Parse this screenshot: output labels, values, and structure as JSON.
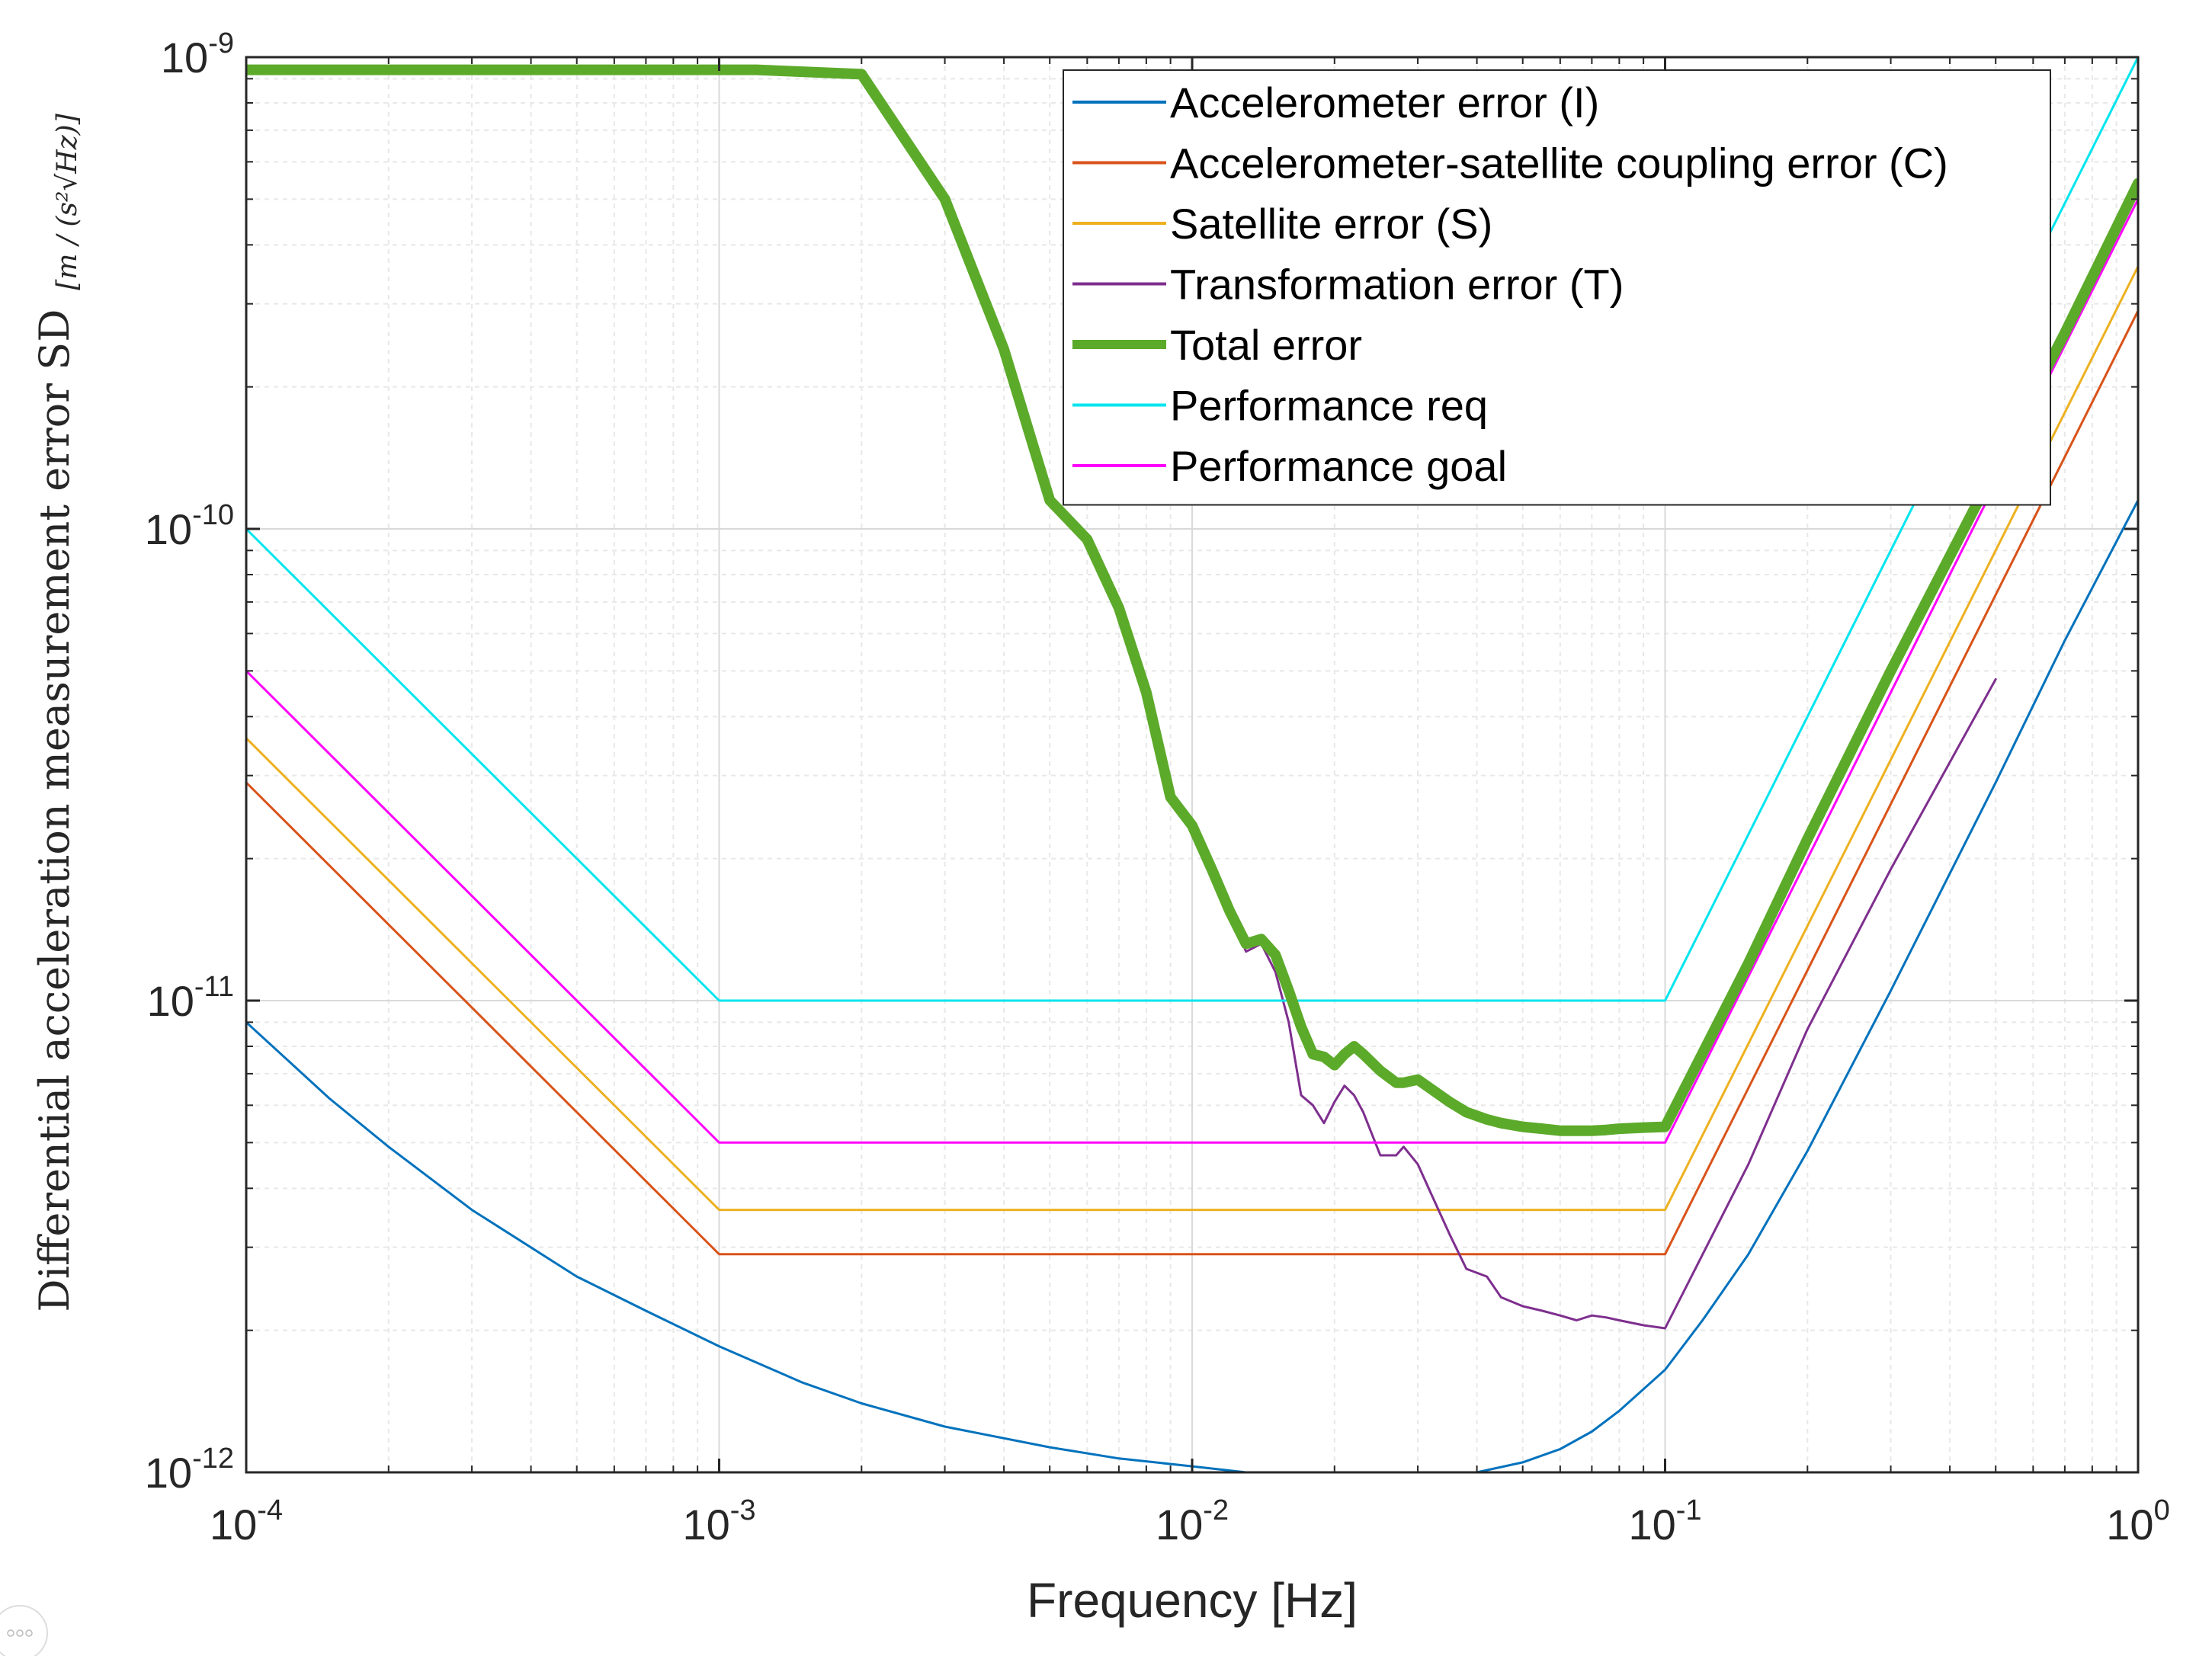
{
  "chart_data": {
    "type": "line",
    "title": "",
    "xlabel": "Frequency [Hz]",
    "ylabel": "Differential acceleration measurement error SD",
    "ylabel_unit": "[m / (s²√Hz)]",
    "x_scale": "log",
    "y_scale": "log",
    "xlim": [
      0.0001,
      1
    ],
    "ylim": [
      1e-12,
      1e-09
    ],
    "grid": true,
    "legend_position": "top-right",
    "x_ticks": [
      {
        "value": 0.0001,
        "base": "10",
        "exp": "-4"
      },
      {
        "value": 0.001,
        "base": "10",
        "exp": "-3"
      },
      {
        "value": 0.01,
        "base": "10",
        "exp": "-2"
      },
      {
        "value": 0.1,
        "base": "10",
        "exp": "-1"
      },
      {
        "value": 1,
        "base": "10",
        "exp": "0"
      }
    ],
    "y_ticks": [
      {
        "value": 1e-12,
        "base": "10",
        "exp": "-12"
      },
      {
        "value": 1e-11,
        "base": "10",
        "exp": "-11"
      },
      {
        "value": 1e-10,
        "base": "10",
        "exp": "-10"
      },
      {
        "value": 1e-09,
        "base": "10",
        "exp": "-9"
      }
    ],
    "series": [
      {
        "name": "Accelerometer error (I)",
        "color": "#0072BD",
        "width": 3,
        "x": [
          0.0001,
          0.00015,
          0.0002,
          0.0003,
          0.0005,
          0.0007,
          0.001,
          0.0015,
          0.002,
          0.003,
          0.005,
          0.007,
          0.01,
          0.013,
          0.04,
          0.05,
          0.06,
          0.07,
          0.08,
          0.1,
          0.12,
          0.15,
          0.2,
          0.3,
          0.5,
          0.7,
          1.0
        ],
        "y": [
          9e-12,
          6.2e-12,
          4.9e-12,
          3.6e-12,
          2.6e-12,
          2.2e-12,
          1.85e-12,
          1.55e-12,
          1.4e-12,
          1.25e-12,
          1.13e-12,
          1.07e-12,
          1.03e-12,
          1e-12,
          1e-12,
          1.05e-12,
          1.12e-12,
          1.22e-12,
          1.35e-12,
          1.65e-12,
          2.1e-12,
          2.9e-12,
          4.8e-12,
          1.05e-11,
          2.9e-11,
          5.8e-11,
          1.15e-10
        ]
      },
      {
        "name": "Accelerometer-satellite coupling error (C)",
        "color": "#D95319",
        "width": 3,
        "x": [
          0.0001,
          0.001,
          0.1,
          1
        ],
        "y": [
          2.9e-11,
          2.9e-12,
          2.9e-12,
          2.9e-10
        ]
      },
      {
        "name": "Satellite error (S)",
        "color": "#EDB120",
        "width": 3,
        "x": [
          0.0001,
          0.001,
          0.1,
          1
        ],
        "y": [
          3.6e-11,
          3.6e-12,
          3.6e-12,
          3.6e-10
        ]
      },
      {
        "name": "Transformation error (T)",
        "color": "#7E2F8E",
        "width": 3,
        "x": [
          0.0001,
          0.0002,
          0.0003,
          0.0005,
          0.0007,
          0.001,
          0.0012,
          0.002,
          0.003,
          0.004,
          0.005,
          0.006,
          0.007,
          0.008,
          0.009,
          0.01,
          0.011,
          0.012,
          0.013,
          0.014,
          0.015,
          0.016,
          0.017,
          0.018,
          0.019,
          0.02,
          0.021,
          0.022,
          0.023,
          0.025,
          0.027,
          0.028,
          0.03,
          0.032,
          0.035,
          0.038,
          0.042,
          0.045,
          0.05,
          0.055,
          0.06,
          0.065,
          0.07,
          0.075,
          0.08,
          0.09,
          0.1,
          0.15,
          0.2,
          0.3,
          0.5
        ],
        "y": [
          9.4e-10,
          9.4e-10,
          9.4e-10,
          9.4e-10,
          9.4e-10,
          9.4e-10,
          9.4e-10,
          9.2e-10,
          5e-10,
          2.4e-10,
          1.15e-10,
          9.5e-11,
          6.8e-11,
          4.5e-11,
          2.7e-11,
          2.35e-11,
          1.9e-11,
          1.55e-11,
          1.27e-11,
          1.32e-11,
          1.15e-11,
          9e-12,
          6.3e-12,
          6e-12,
          5.5e-12,
          6.1e-12,
          6.6e-12,
          6.3e-12,
          5.8e-12,
          4.7e-12,
          4.7e-12,
          4.9e-12,
          4.5e-12,
          3.9e-12,
          3.2e-12,
          2.7e-12,
          2.6e-12,
          2.35e-12,
          2.25e-12,
          2.2e-12,
          2.15e-12,
          2.1e-12,
          2.15e-12,
          2.13e-12,
          2.1e-12,
          2.05e-12,
          2.02e-12,
          4.5e-12,
          8.7e-12,
          1.9e-11,
          4.8e-11
        ]
      },
      {
        "name": "Total error",
        "color": "#5CAA2A",
        "width": 14,
        "x": [
          0.0001,
          0.0002,
          0.0003,
          0.0005,
          0.0007,
          0.001,
          0.0012,
          0.002,
          0.003,
          0.004,
          0.005,
          0.006,
          0.007,
          0.008,
          0.009,
          0.01,
          0.011,
          0.012,
          0.013,
          0.014,
          0.015,
          0.016,
          0.017,
          0.018,
          0.019,
          0.02,
          0.021,
          0.022,
          0.023,
          0.025,
          0.027,
          0.028,
          0.03,
          0.032,
          0.035,
          0.038,
          0.042,
          0.045,
          0.05,
          0.055,
          0.06,
          0.065,
          0.07,
          0.075,
          0.08,
          0.09,
          0.1,
          0.15,
          0.2,
          0.3,
          0.5,
          0.7,
          1.0
        ],
        "y": [
          9.4e-10,
          9.4e-10,
          9.4e-10,
          9.4e-10,
          9.4e-10,
          9.4e-10,
          9.4e-10,
          9.2e-10,
          5e-10,
          2.4e-10,
          1.15e-10,
          9.5e-11,
          6.8e-11,
          4.5e-11,
          2.7e-11,
          2.35e-11,
          1.9e-11,
          1.55e-11,
          1.32e-11,
          1.35e-11,
          1.25e-11,
          1.05e-11,
          8.8e-12,
          7.7e-12,
          7.6e-12,
          7.3e-12,
          7.7e-12,
          8e-12,
          7.7e-12,
          7.1e-12,
          6.7e-12,
          6.7e-12,
          6.8e-12,
          6.5e-12,
          6.1e-12,
          5.8e-12,
          5.6e-12,
          5.5e-12,
          5.4e-12,
          5.35e-12,
          5.3e-12,
          5.3e-12,
          5.3e-12,
          5.32e-12,
          5.35e-12,
          5.38e-12,
          5.4e-12,
          1.2e-11,
          2.2e-11,
          5e-11,
          1.35e-10,
          2.6e-10,
          5.4e-10
        ]
      },
      {
        "name": "Performance req",
        "color": "#00E5EE",
        "width": 3,
        "x": [
          0.0001,
          0.001,
          0.1,
          1
        ],
        "y": [
          1e-10,
          1e-11,
          1e-11,
          1e-09
        ]
      },
      {
        "name": "Performance goal",
        "color": "#FF00FF",
        "width": 3,
        "x": [
          0.0001,
          0.001,
          0.1,
          1
        ],
        "y": [
          5e-11,
          5e-12,
          5e-12,
          5e-10
        ]
      }
    ]
  }
}
